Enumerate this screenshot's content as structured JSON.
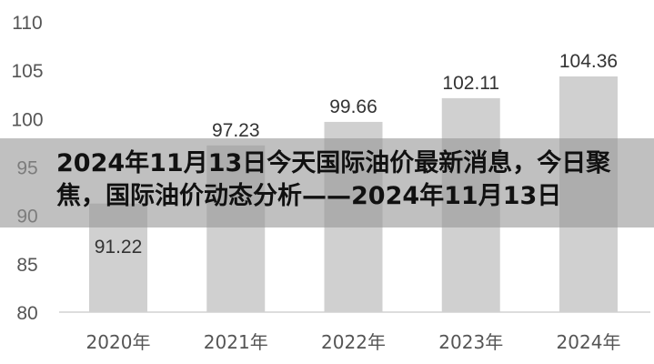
{
  "chart_data": {
    "type": "bar",
    "categories": [
      "2020年",
      "2021年",
      "2022年",
      "2023年",
      "2024年"
    ],
    "values": [
      91.22,
      97.23,
      99.66,
      102.11,
      104.36
    ],
    "ylim": [
      80,
      110
    ],
    "yticks": [
      80,
      85,
      90,
      95,
      100,
      105,
      110
    ],
    "bar_color": "#d0d0d0",
    "grid": false
  },
  "overlay": {
    "title": "2024年11月13日今天国际油价最新消息，今日聚焦，国际油价动态分析——2024年11月13日"
  }
}
